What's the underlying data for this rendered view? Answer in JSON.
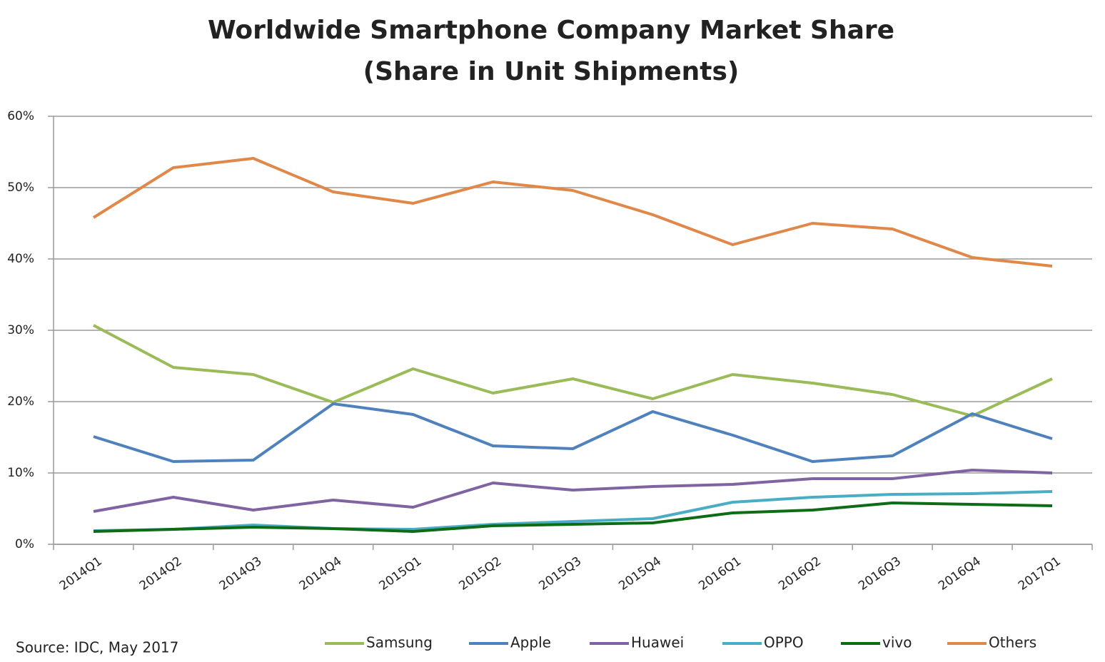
{
  "chart_data": {
    "type": "line",
    "title": "Worldwide Smartphone Company Market Share",
    "subtitle": "(Share in Unit Shipments)",
    "source": "Source: IDC, May 2017",
    "categories": [
      "2014Q1",
      "2014Q2",
      "2014Q3",
      "2014Q4",
      "2015Q1",
      "2015Q2",
      "2015Q3",
      "2015Q4",
      "2016Q1",
      "2016Q2",
      "2016Q3",
      "2016Q4",
      "2017Q1"
    ],
    "series": [
      {
        "name": "Samsung",
        "color": "#9bbb59",
        "values": [
          30.7,
          24.8,
          23.8,
          19.9,
          24.6,
          21.2,
          23.2,
          20.4,
          23.8,
          22.6,
          21.0,
          18.0,
          23.2
        ]
      },
      {
        "name": "Apple",
        "color": "#4f81bd",
        "values": [
          15.1,
          11.6,
          11.8,
          19.7,
          18.2,
          13.8,
          13.4,
          18.6,
          15.3,
          11.6,
          12.4,
          18.3,
          14.8
        ]
      },
      {
        "name": "Huawei",
        "color": "#8064a2",
        "values": [
          4.6,
          6.6,
          4.8,
          6.2,
          5.2,
          8.6,
          7.6,
          8.1,
          8.4,
          9.2,
          9.2,
          10.4,
          10.0
        ]
      },
      {
        "name": "OPPO",
        "color": "#4bacc6",
        "values": [
          1.9,
          2.1,
          2.7,
          2.2,
          2.1,
          2.8,
          3.2,
          3.6,
          5.9,
          6.6,
          7.0,
          7.1,
          7.4
        ]
      },
      {
        "name": "vivo",
        "color": "#0e6b16",
        "values": [
          1.8,
          2.1,
          2.4,
          2.2,
          1.8,
          2.6,
          2.8,
          3.0,
          4.4,
          4.8,
          5.8,
          5.6,
          5.4
        ]
      },
      {
        "name": "Others",
        "color": "#e0884a",
        "values": [
          45.8,
          52.8,
          54.1,
          49.4,
          47.8,
          50.8,
          49.6,
          46.2,
          42.0,
          45.0,
          44.2,
          40.2,
          39.0
        ]
      }
    ],
    "ylim": [
      0,
      60
    ],
    "yticks": [
      {
        "value": 0,
        "label": "0%"
      },
      {
        "value": 10,
        "label": "10%"
      },
      {
        "value": 20,
        "label": "20%"
      },
      {
        "value": 30,
        "label": "30%"
      },
      {
        "value": 40,
        "label": "40%"
      },
      {
        "value": 50,
        "label": "50%"
      },
      {
        "value": 60,
        "label": "60%"
      }
    ],
    "grid": true,
    "legend": "bottom"
  }
}
